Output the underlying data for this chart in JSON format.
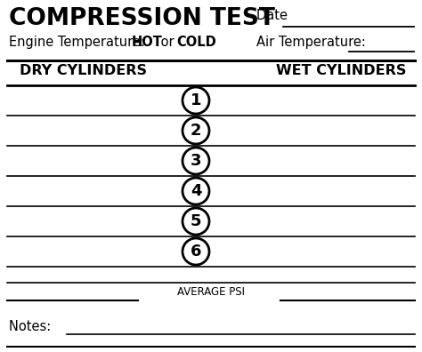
{
  "title": "COMPRESSION TEST",
  "title_fontsize": 19,
  "subtitle_normal": "Engine Temperature: ",
  "subtitle_hot": "HOT",
  "subtitle_or": " or ",
  "subtitle_cold": "COLD",
  "subtitle_fontsize": 10.5,
  "date_label": "Date ",
  "air_temp_label": "Air Temperature: ",
  "dry_cylinders": "DRY CYLINDERS",
  "wet_cylinders": "WET CYLINDERS",
  "cylinders": [
    "1",
    "2",
    "3",
    "4",
    "5",
    "6"
  ],
  "avg_psi_label": "AVERAGE PSI",
  "notes_label": "Notes: ",
  "bg_color": "#ffffff",
  "text_color": "#000000",
  "line_color": "#000000",
  "col_header_fontsize": 11.5,
  "avg_fontsize": 8.5,
  "notes_fontsize": 10.5,
  "num_fontsize": 13
}
